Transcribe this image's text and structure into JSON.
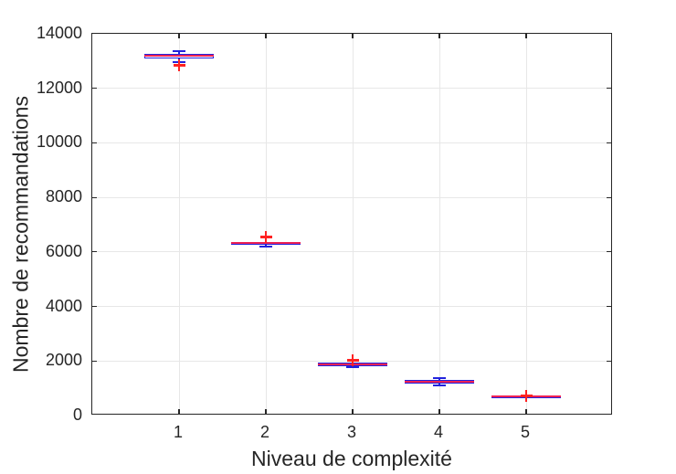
{
  "chart_data": {
    "type": "boxplot",
    "title": "",
    "xlabel": "Niveau de complexité",
    "ylabel": "Nombre de recommandations",
    "xlim": [
      0,
      6
    ],
    "ylim": [
      0,
      14000
    ],
    "xticks": [
      1,
      2,
      3,
      4,
      5
    ],
    "xtick_labels": [
      "1",
      "2",
      "3",
      "4",
      "5"
    ],
    "yticks": [
      0,
      2000,
      4000,
      6000,
      8000,
      10000,
      12000,
      14000
    ],
    "ytick_labels": [
      "0",
      "2000",
      "4000",
      "6000",
      "8000",
      "10000",
      "12000",
      "14000"
    ],
    "grid": true,
    "box_width": 0.8,
    "cap_width": 0.15,
    "groups": [
      {
        "x": 1,
        "label": "1",
        "median": 13200,
        "q1": 13090,
        "q3": 13250,
        "whisker_low": 12970,
        "whisker_high": 13380,
        "outliers": [
          12840
        ]
      },
      {
        "x": 2,
        "label": "2",
        "median": 6320,
        "q1": 6250,
        "q3": 6380,
        "whisker_low": 6180,
        "whisker_high": 6380,
        "outliers": [
          6540
        ]
      },
      {
        "x": 3,
        "label": "3",
        "median": 1880,
        "q1": 1810,
        "q3": 1940,
        "whisker_low": 1760,
        "whisker_high": 1940,
        "outliers": [
          2010
        ]
      },
      {
        "x": 4,
        "label": "4",
        "median": 1240,
        "q1": 1170,
        "q3": 1310,
        "whisker_low": 1110,
        "whisker_high": 1375,
        "outliers": []
      },
      {
        "x": 5,
        "label": "5",
        "median": 705,
        "q1": 680,
        "q3": 730,
        "whisker_low": 680,
        "whisker_high": 730,
        "outliers": [
          705
        ]
      }
    ],
    "colors": {
      "box": "#2222dd",
      "whisker": "#2222dd",
      "median": "#ee2255",
      "outlier": "#ff2222",
      "grid": "#e7e7e7",
      "axis": "#262626",
      "text": "#262626"
    }
  }
}
